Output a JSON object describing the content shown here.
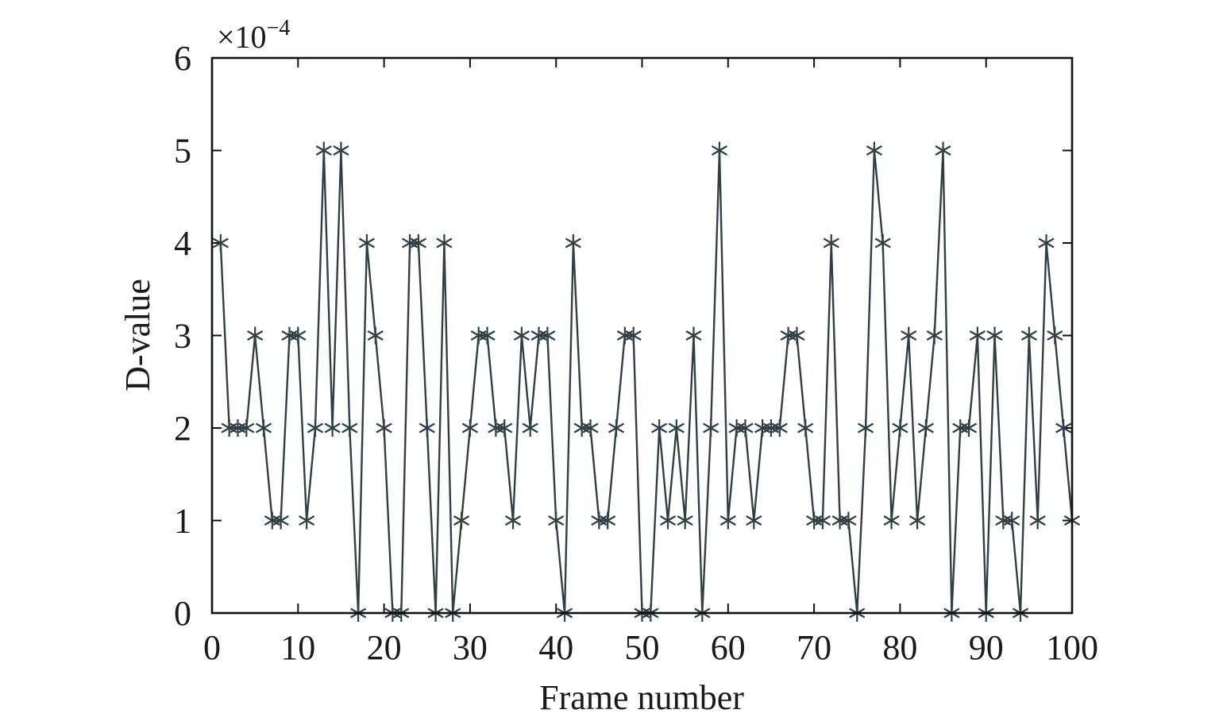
{
  "chart_data": {
    "type": "line",
    "xlabel": "Frame number",
    "ylabel": "D-value",
    "scale_note": "×10",
    "scale_exponent": "−4",
    "xlim": [
      0,
      100
    ],
    "ylim": [
      0,
      6
    ],
    "x_ticks": [
      "0",
      "10",
      "20",
      "30",
      "40",
      "50",
      "60",
      "70",
      "80",
      "90",
      "100"
    ],
    "y_ticks": [
      "0",
      "1",
      "2",
      "3",
      "4",
      "5",
      "6"
    ],
    "marker": "asterisk",
    "line_color": "#2f3f44",
    "marker_color": "#2f3f44",
    "series": [
      {
        "x": [
          1,
          2,
          3,
          4,
          5,
          6,
          7,
          8,
          9,
          10,
          11,
          12,
          13,
          14,
          15,
          16,
          17,
          18,
          19,
          20,
          21,
          22,
          23,
          24,
          25,
          26,
          27,
          28,
          29,
          30,
          31,
          32,
          33,
          34,
          35,
          36,
          37,
          38,
          39,
          40,
          41,
          42,
          43,
          44,
          45,
          46,
          47,
          48,
          49,
          50,
          51,
          52,
          53,
          54,
          55,
          56,
          57,
          58,
          59,
          60,
          61,
          62,
          63,
          64,
          65,
          66,
          67,
          68,
          69,
          70,
          71,
          72,
          73,
          74,
          75,
          76,
          77,
          78,
          79,
          80,
          81,
          82,
          83,
          84,
          85,
          86,
          87,
          88,
          89,
          90,
          91,
          92,
          93,
          94,
          95,
          96,
          97,
          98,
          99,
          100
        ],
        "y": [
          4,
          2,
          2,
          2,
          3,
          2,
          1,
          1,
          3,
          3,
          1,
          2,
          5,
          2,
          5,
          2,
          0,
          4,
          3,
          2,
          0,
          0,
          4,
          4,
          2,
          0,
          4,
          0,
          1,
          2,
          3,
          3,
          2,
          2,
          1,
          3,
          2,
          3,
          3,
          1,
          0,
          4,
          2,
          2,
          1,
          1,
          2,
          3,
          3,
          0,
          0,
          2,
          1,
          2,
          1,
          3,
          0,
          2,
          5,
          1,
          2,
          2,
          1,
          2,
          2,
          2,
          3,
          3,
          2,
          1,
          1,
          4,
          1,
          1,
          0,
          2,
          5,
          4,
          1,
          2,
          3,
          1,
          2,
          3,
          5,
          0,
          2,
          2,
          3,
          0,
          3,
          1,
          1,
          0,
          3,
          1,
          4,
          3,
          2,
          1
        ]
      }
    ]
  }
}
